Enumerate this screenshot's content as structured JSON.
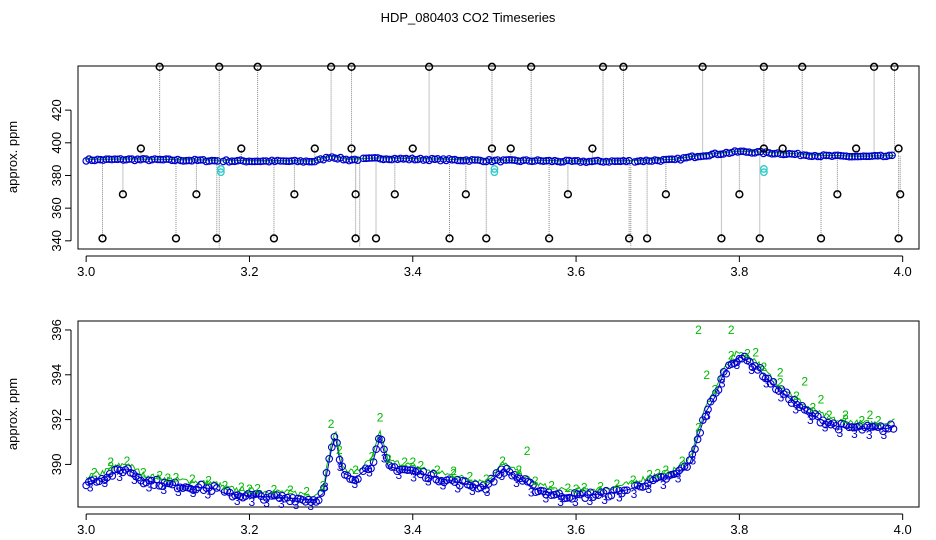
{
  "title": "HDP_080403  CO2 Timeseries",
  "colors": {
    "outlier": "#000000",
    "series_blue": "#0000cc",
    "series_green": "#00bb00",
    "series_cyan": "#33cccc",
    "spike_line": "#888888",
    "axis": "#000000"
  },
  "chart_data": [
    {
      "type": "scatter",
      "ylabel": "approx. ppm",
      "xlim": [
        2.99,
        4.02
      ],
      "ylim": [
        335,
        447
      ],
      "xticks": [
        3.0,
        3.2,
        3.4,
        3.6,
        3.8,
        4.0
      ],
      "xtick_labels": [
        "3.0",
        "3.2",
        "3.4",
        "3.6",
        "3.8",
        "4.0"
      ],
      "yticks": [
        340,
        360,
        380,
        400,
        420
      ],
      "ytick_labels": [
        "340",
        "360",
        "380",
        "400",
        "420"
      ],
      "baseline": [
        [
          3.0,
          389.5
        ],
        [
          3.05,
          389.8
        ],
        [
          3.1,
          389.5
        ],
        [
          3.16,
          389.0
        ],
        [
          3.2,
          388.8
        ],
        [
          3.28,
          388.6
        ],
        [
          3.3,
          391.5
        ],
        [
          3.32,
          389.5
        ],
        [
          3.36,
          390.5
        ],
        [
          3.4,
          390.0
        ],
        [
          3.45,
          389.5
        ],
        [
          3.5,
          389.0
        ],
        [
          3.55,
          389.0
        ],
        [
          3.6,
          388.5
        ],
        [
          3.66,
          388.7
        ],
        [
          3.72,
          389.5
        ],
        [
          3.75,
          392.0
        ],
        [
          3.8,
          394.6
        ],
        [
          3.85,
          393.5
        ],
        [
          3.9,
          392.0
        ],
        [
          3.95,
          391.5
        ],
        [
          3.99,
          391.8
        ]
      ],
      "gap_breaks": [
        3.163,
        3.335,
        3.667
      ],
      "cyan_points": [
        [
          3.165,
          382
        ],
        [
          3.165,
          384
        ],
        [
          3.5,
          382
        ],
        [
          3.5,
          384
        ],
        [
          3.83,
          382
        ],
        [
          3.83,
          384
        ]
      ],
      "outliers_high": [
        3.09,
        3.163,
        3.21,
        3.3,
        3.325,
        3.42,
        3.497,
        3.545,
        3.633,
        3.658,
        3.755,
        3.83,
        3.877,
        3.965,
        3.99
      ],
      "outliers_low": [
        3.02,
        3.11,
        3.16,
        3.23,
        3.33,
        3.355,
        3.445,
        3.49,
        3.567,
        3.665,
        3.687,
        3.778,
        3.825,
        3.9,
        3.995
      ],
      "outliers_mid_high": [
        3.067,
        3.19,
        3.28,
        3.325,
        3.4,
        3.497,
        3.52,
        3.62,
        3.83,
        3.853,
        3.943,
        3.995
      ],
      "outliers_mid_low": [
        3.045,
        3.135,
        3.255,
        3.33,
        3.378,
        3.465,
        3.59,
        3.71,
        3.8,
        3.92,
        3.997
      ],
      "high_value": 446.5,
      "low_value": 341.5,
      "mid_high_value": 396.5,
      "mid_low_value": 368.5
    },
    {
      "type": "scatter",
      "ylabel": "approx. ppm",
      "xlim": [
        2.99,
        4.02
      ],
      "ylim": [
        388.1,
        396.4
      ],
      "xticks": [
        3.0,
        3.2,
        3.4,
        3.6,
        3.8,
        4.0
      ],
      "xtick_labels": [
        "3.0",
        "3.2",
        "3.4",
        "3.6",
        "3.8",
        "4.0"
      ],
      "yticks": [
        390,
        392,
        394,
        396
      ],
      "ytick_labels": [
        "390",
        "392",
        "394",
        "396"
      ],
      "series": [
        {
          "label": "3",
          "points": [
            [
              3.0,
              389.2
            ],
            [
              3.02,
              389.4
            ],
            [
              3.04,
              389.7
            ],
            [
              3.05,
              389.8
            ],
            [
              3.07,
              389.3
            ],
            [
              3.1,
              389.1
            ],
            [
              3.13,
              389.0
            ],
            [
              3.16,
              388.9
            ],
            [
              3.17,
              388.7
            ],
            [
              3.2,
              388.6
            ],
            [
              3.25,
              388.5
            ],
            [
              3.28,
              388.4
            ],
            [
              3.29,
              388.7
            ],
            [
              3.3,
              390.6
            ],
            [
              3.305,
              391.3
            ],
            [
              3.31,
              390.3
            ],
            [
              3.315,
              389.6
            ],
            [
              3.33,
              389.4
            ],
            [
              3.35,
              390.0
            ],
            [
              3.36,
              391.2
            ],
            [
              3.37,
              389.9
            ],
            [
              3.4,
              389.7
            ],
            [
              3.43,
              389.4
            ],
            [
              3.47,
              389.1
            ],
            [
              3.49,
              389.0
            ],
            [
              3.51,
              389.8
            ],
            [
              3.53,
              389.4
            ],
            [
              3.55,
              388.9
            ],
            [
              3.58,
              388.6
            ],
            [
              3.6,
              388.6
            ],
            [
              3.64,
              388.7
            ],
            [
              3.667,
              388.9
            ],
            [
              3.68,
              389.1
            ],
            [
              3.7,
              389.3
            ],
            [
              3.72,
              389.5
            ],
            [
              3.74,
              390.1
            ],
            [
              3.75,
              391.3
            ],
            [
              3.76,
              392.4
            ],
            [
              3.77,
              393.0
            ],
            [
              3.78,
              394.0
            ],
            [
              3.79,
              394.5
            ],
            [
              3.8,
              394.8
            ],
            [
              3.82,
              394.4
            ],
            [
              3.84,
              393.6
            ],
            [
              3.86,
              393.0
            ],
            [
              3.88,
              392.4
            ],
            [
              3.9,
              392.0
            ],
            [
              3.92,
              391.7
            ],
            [
              3.95,
              391.6
            ],
            [
              3.98,
              391.6
            ],
            [
              3.99,
              391.7
            ]
          ]
        },
        {
          "label": "2",
          "points": [
            [
              3.03,
              390.1
            ],
            [
              3.1,
              389.4
            ],
            [
              3.2,
              388.9
            ],
            [
              3.3,
              391.8
            ],
            [
              3.36,
              392.1
            ],
            [
              3.4,
              390.1
            ],
            [
              3.45,
              389.7
            ],
            [
              3.54,
              390.6
            ],
            [
              3.6,
              388.9
            ],
            [
              3.7,
              389.6
            ],
            [
              3.75,
              396.0
            ],
            [
              3.76,
              394.0
            ],
            [
              3.79,
              396.0
            ],
            [
              3.82,
              395.0
            ],
            [
              3.85,
              394.1
            ],
            [
              3.88,
              393.7
            ],
            [
              3.9,
              392.9
            ],
            [
              3.93,
              392.2
            ],
            [
              3.96,
              392.2
            ]
          ]
        }
      ]
    }
  ]
}
